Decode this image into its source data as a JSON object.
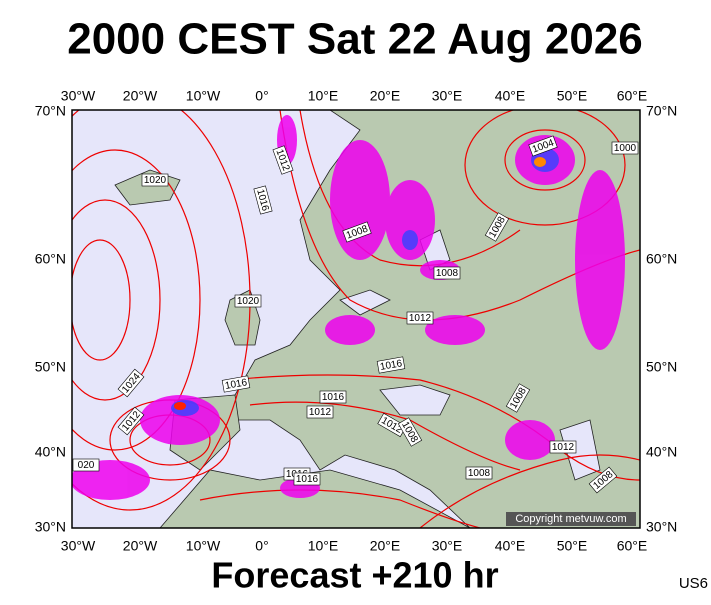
{
  "header": {
    "title": "2000 CEST Sat 22 Aug 2026"
  },
  "map": {
    "longitudes": [
      "30°W",
      "20°W",
      "10°W",
      "0°",
      "10°E",
      "20°E",
      "30°E",
      "40°E",
      "50°E",
      "60°E"
    ],
    "latitudes": [
      "70°N",
      "60°N",
      "50°N",
      "40°N",
      "30°N"
    ],
    "isobar_labels": [
      "1020",
      "1012",
      "1016",
      "1008",
      "1020",
      "1008",
      "1012",
      "1016",
      "1024",
      "1016",
      "1016",
      "1012",
      "1012",
      "1012",
      "1008",
      "1008",
      "1012",
      "1008",
      "1016",
      "1016",
      "1008",
      "020",
      "1004",
      "1000",
      "1008"
    ],
    "copyright": "Copyright metvuw.com"
  },
  "footer": {
    "forecast": "Forecast +210 hr",
    "code": "US6"
  }
}
